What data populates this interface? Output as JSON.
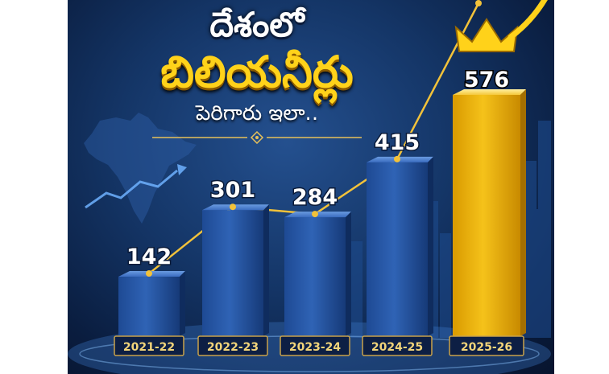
{
  "title": {
    "line1": "దేశంలో",
    "line2": "బిలియనీర్లు",
    "line3": "పెరిగారు ఇలా.."
  },
  "colors": {
    "bar_blue": "#2f63b5",
    "bar_gold": "#f5c21a",
    "line": "#f2c23a",
    "label_box": "#0d1f44",
    "accent_gold": "#ffd21a"
  },
  "chart_data": {
    "type": "bar",
    "title": "",
    "xlabel": "",
    "ylabel": "",
    "categories": [
      "2021-22",
      "2022-23",
      "2023-24",
      "2024-25",
      "2025-26"
    ],
    "values": [
      142,
      301,
      284,
      415,
      576
    ],
    "ylim": [
      0,
      600
    ],
    "grid": false,
    "highlight_category": "2025-26",
    "decorations": [
      "crown-icon",
      "up-arrow-icon",
      "india-map-icon",
      "skyline"
    ]
  }
}
